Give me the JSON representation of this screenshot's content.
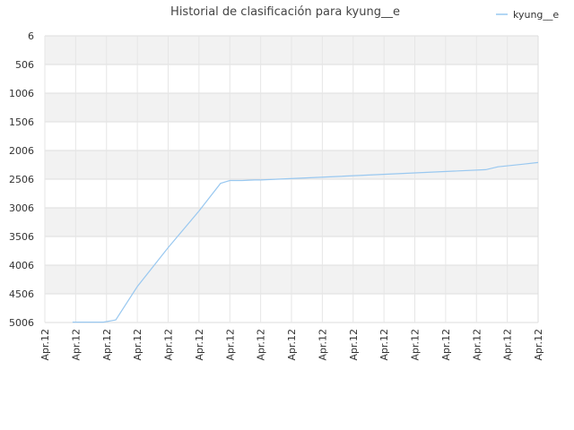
{
  "chart_data": {
    "type": "line",
    "title": "Historial de clasificación para kyung__e",
    "xlabel": "",
    "ylabel": "",
    "y_inverted": true,
    "ylim": [
      6,
      5006
    ],
    "y_ticks": [
      "6",
      "506",
      "1006",
      "1506",
      "2006",
      "2506",
      "3006",
      "3506",
      "4006",
      "4506",
      "5006"
    ],
    "x_ticks": [
      "Apr.12",
      "Apr.12",
      "Apr.12",
      "Apr.12",
      "Apr.12",
      "Apr.12",
      "Apr.12",
      "Apr.12",
      "Apr.12",
      "Apr.12",
      "Apr.12",
      "Apr.12",
      "Apr.12",
      "Apr.12",
      "Apr.12",
      "Apr.12",
      "Apr.12"
    ],
    "legend": {
      "position": "top-right",
      "entries": [
        "kyung__e"
      ]
    },
    "grid": true,
    "band_colors": [
      "#f2f2f2",
      "#ffffff"
    ],
    "series": [
      {
        "name": "kyung__e",
        "color": "#99c8f0",
        "x": [
          0.9,
          1.5,
          1.9,
          2.3,
          3.0,
          4.0,
          5.0,
          5.7,
          6.0,
          6.4,
          6.8,
          7.0,
          14.3,
          14.7,
          15.5,
          16.0
        ],
        "y": [
          5000,
          5000,
          5000,
          4960,
          4380,
          3700,
          3060,
          2580,
          2530,
          2530,
          2520,
          2520,
          2340,
          2290,
          2245,
          2215
        ]
      }
    ]
  }
}
